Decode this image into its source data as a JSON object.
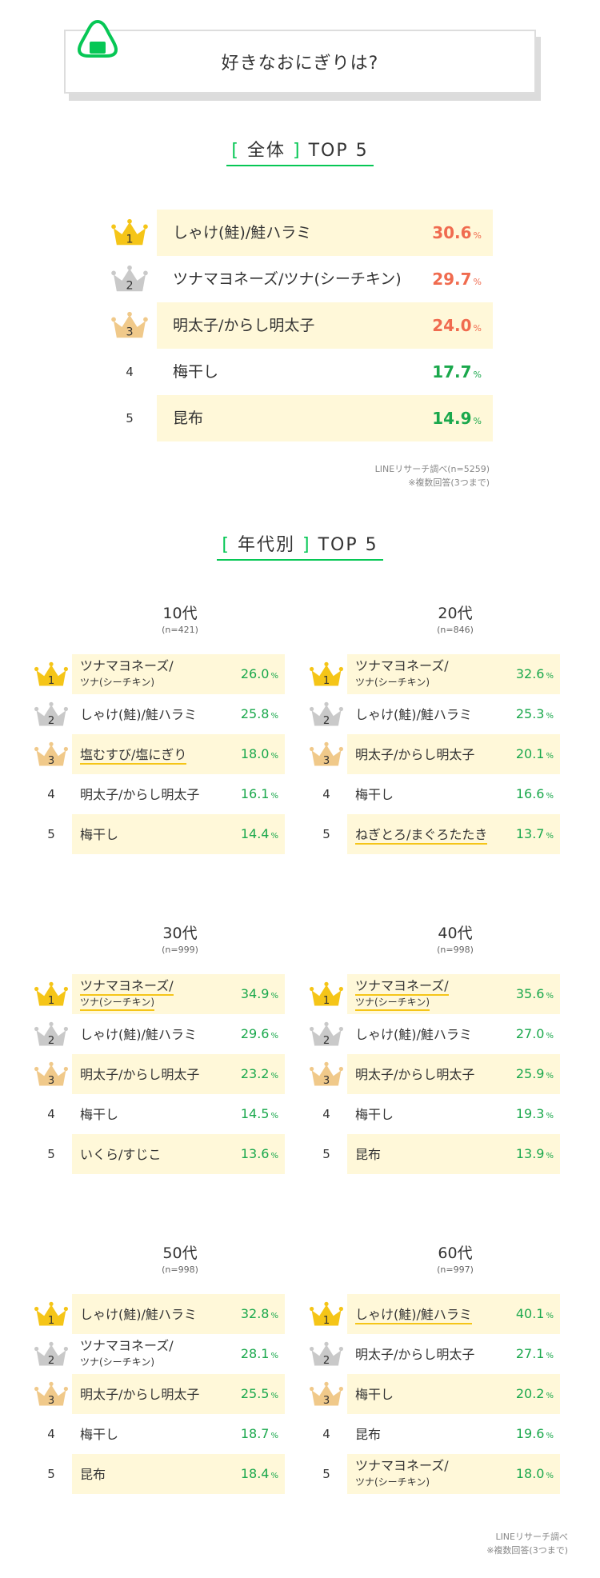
{
  "header": {
    "title": "好きなおにぎりは?"
  },
  "colors": {
    "accent": "#06c755",
    "highlight": "#fff8d9",
    "top3_value": "#f06b4f",
    "value": "#1aa84c",
    "gold": "#f5c518",
    "silver": "#c9c9c9",
    "bronze": "#f0c98a"
  },
  "overall": {
    "title_bracket_open": "[",
    "title_label": "全体",
    "title_bracket_close": "]",
    "title_suffix": "TOP 5",
    "unit": "%",
    "rows": [
      {
        "rank": "1",
        "name": "しゃけ(鮭)/鮭ハラミ",
        "value": "30.6"
      },
      {
        "rank": "2",
        "name": "ツナマヨネーズ/ツナ(シーチキン)",
        "value": "29.7"
      },
      {
        "rank": "3",
        "name": "明太子/からし明太子",
        "value": "24.0"
      },
      {
        "rank": "4",
        "name": "梅干し",
        "value": "17.7"
      },
      {
        "rank": "5",
        "name": "昆布",
        "value": "14.9"
      }
    ],
    "note1": "LINEリサーチ調べ(n=5259)",
    "note2": "※複数回答(3つまで)"
  },
  "by_age": {
    "title_bracket_open": "[",
    "title_label": "年代別",
    "title_bracket_close": "]",
    "title_suffix": "TOP 5",
    "unit": "%",
    "groups": [
      {
        "age": "10代",
        "n": "(n=421)",
        "rows": [
          {
            "rank": "1",
            "name1": "ツナマヨネーズ/",
            "name2": "ツナ(シーチキン)",
            "value": "26.0"
          },
          {
            "rank": "2",
            "name1": "しゃけ(鮭)/鮭ハラミ",
            "value": "25.8"
          },
          {
            "rank": "3",
            "name1": "塩むすび/塩にぎり",
            "value": "18.0"
          },
          {
            "rank": "4",
            "name1": "明太子/からし明太子",
            "value": "16.1"
          },
          {
            "rank": "5",
            "name1": "梅干し",
            "value": "14.4"
          }
        ]
      },
      {
        "age": "20代",
        "n": "(n=846)",
        "rows": [
          {
            "rank": "1",
            "name1": "ツナマヨネーズ/",
            "name2": "ツナ(シーチキン)",
            "value": "32.6"
          },
          {
            "rank": "2",
            "name1": "しゃけ(鮭)/鮭ハラミ",
            "value": "25.3"
          },
          {
            "rank": "3",
            "name1": "明太子/からし明太子",
            "value": "20.1"
          },
          {
            "rank": "4",
            "name1": "梅干し",
            "value": "16.6"
          },
          {
            "rank": "5",
            "name1": "ねぎとろ/まぐろたたき",
            "value": "13.7"
          }
        ]
      },
      {
        "age": "30代",
        "n": "(n=999)",
        "rows": [
          {
            "rank": "1",
            "name1": "ツナマヨネーズ/",
            "name2": "ツナ(シーチキン)",
            "value": "34.9"
          },
          {
            "rank": "2",
            "name1": "しゃけ(鮭)/鮭ハラミ",
            "value": "29.6"
          },
          {
            "rank": "3",
            "name1": "明太子/からし明太子",
            "value": "23.2"
          },
          {
            "rank": "4",
            "name1": "梅干し",
            "value": "14.5"
          },
          {
            "rank": "5",
            "name1": "いくら/すじこ",
            "value": "13.6"
          }
        ]
      },
      {
        "age": "40代",
        "n": "(n=998)",
        "rows": [
          {
            "rank": "1",
            "name1": "ツナマヨネーズ/",
            "name2": "ツナ(シーチキン)",
            "value": "35.6"
          },
          {
            "rank": "2",
            "name1": "しゃけ(鮭)/鮭ハラミ",
            "value": "27.0"
          },
          {
            "rank": "3",
            "name1": "明太子/からし明太子",
            "value": "25.9"
          },
          {
            "rank": "4",
            "name1": "梅干し",
            "value": "19.3"
          },
          {
            "rank": "5",
            "name1": "昆布",
            "value": "13.9"
          }
        ]
      },
      {
        "age": "50代",
        "n": "(n=998)",
        "rows": [
          {
            "rank": "1",
            "name1": "しゃけ(鮭)/鮭ハラミ",
            "value": "32.8"
          },
          {
            "rank": "2",
            "name1": "ツナマヨネーズ/",
            "name2": "ツナ(シーチキン)",
            "value": "28.1"
          },
          {
            "rank": "3",
            "name1": "明太子/からし明太子",
            "value": "25.5"
          },
          {
            "rank": "4",
            "name1": "梅干し",
            "value": "18.7"
          },
          {
            "rank": "5",
            "name1": "昆布",
            "value": "18.4"
          }
        ]
      },
      {
        "age": "60代",
        "n": "(n=997)",
        "rows": [
          {
            "rank": "1",
            "name1": "しゃけ(鮭)/鮭ハラミ",
            "value": "40.1"
          },
          {
            "rank": "2",
            "name1": "明太子/からし明太子",
            "value": "27.1"
          },
          {
            "rank": "3",
            "name1": "梅干し",
            "value": "20.2"
          },
          {
            "rank": "4",
            "name1": "昆布",
            "value": "19.6"
          },
          {
            "rank": "5",
            "name1": "ツナマヨネーズ/",
            "name2": "ツナ(シーチキン)",
            "value": "18.0"
          }
        ]
      }
    ],
    "note1": "LINEリサーチ調べ",
    "note2": "※複数回答(3つまで)"
  },
  "chart_data": [
    {
      "type": "table",
      "title": "好きなおにぎりは?",
      "subtitle": "全体 TOP 5",
      "categories": [
        "しゃけ(鮭)/鮭ハラミ",
        "ツナマヨネーズ/ツナ(シーチキン)",
        "明太子/からし明太子",
        "梅干し",
        "昆布"
      ],
      "values": [
        30.6,
        29.7,
        24.0,
        17.7,
        14.9
      ],
      "unit": "%"
    },
    {
      "type": "table",
      "subtitle": "年代別 TOP 5",
      "unit": "%",
      "series": [
        {
          "name": "10代",
          "categories": [
            "ツナマヨネーズ/ツナ(シーチキン)",
            "しゃけ(鮭)/鮭ハラミ",
            "塩むすび/塩にぎり",
            "明太子/からし明太子",
            "梅干し"
          ],
          "values": [
            26.0,
            25.8,
            18.0,
            16.1,
            14.4
          ]
        },
        {
          "name": "20代",
          "categories": [
            "ツナマヨネーズ/ツナ(シーチキン)",
            "しゃけ(鮭)/鮭ハラミ",
            "明太子/からし明太子",
            "梅干し",
            "ねぎとろ/まぐろたたき"
          ],
          "values": [
            32.6,
            25.3,
            20.1,
            16.6,
            13.7
          ]
        },
        {
          "name": "30代",
          "categories": [
            "ツナマヨネーズ/ツナ(シーチキン)",
            "しゃけ(鮭)/鮭ハラミ",
            "明太子/からし明太子",
            "梅干し",
            "いくら/すじこ"
          ],
          "values": [
            34.9,
            29.6,
            23.2,
            14.5,
            13.6
          ]
        },
        {
          "name": "40代",
          "categories": [
            "ツナマヨネーズ/ツナ(シーチキン)",
            "しゃけ(鮭)/鮭ハラミ",
            "明太子/からし明太子",
            "梅干し",
            "昆布"
          ],
          "values": [
            35.6,
            27.0,
            25.9,
            19.3,
            13.9
          ]
        },
        {
          "name": "50代",
          "categories": [
            "しゃけ(鮭)/鮭ハラミ",
            "ツナマヨネーズ/ツナ(シーチキン)",
            "明太子/からし明太子",
            "梅干し",
            "昆布"
          ],
          "values": [
            32.8,
            28.1,
            25.5,
            18.7,
            18.4
          ]
        },
        {
          "name": "60代",
          "categories": [
            "しゃけ(鮭)/鮭ハラミ",
            "明太子/からし明太子",
            "梅干し",
            "昆布",
            "ツナマヨネーズ/ツナ(シーチキン)"
          ],
          "values": [
            40.1,
            27.1,
            20.2,
            19.6,
            18.0
          ]
        }
      ]
    }
  ]
}
